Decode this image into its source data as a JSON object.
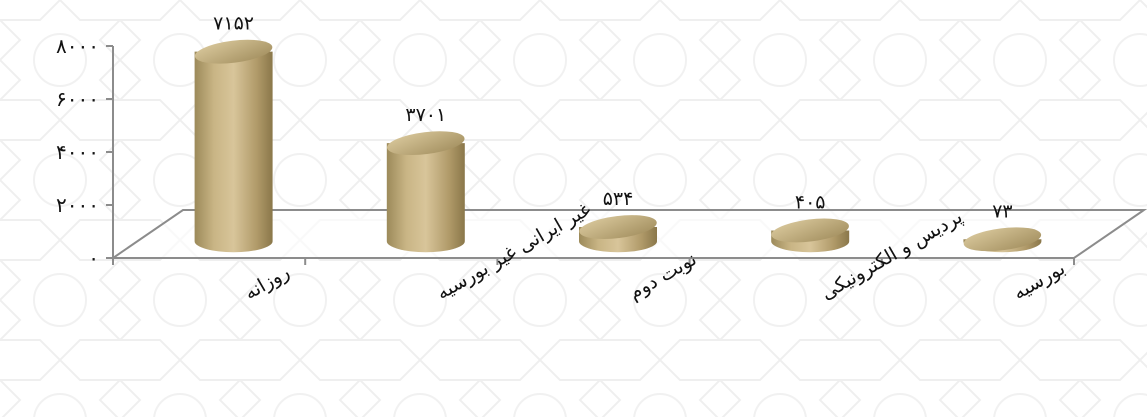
{
  "chart_data": {
    "type": "bar",
    "categories": [
      "روزانه",
      "غیر ایرانی غیر بورسیه",
      "نوبت دوم",
      "پردیس و الکترونیکی",
      "بورسیه"
    ],
    "values": [
      7152,
      3701,
      534,
      405,
      73
    ],
    "data_labels": [
      "۷۱۵۲",
      "۳۷۰۱",
      "۵۳۴",
      "۴۰۵",
      "۷۳"
    ],
    "ylim": [
      0,
      8000
    ],
    "y_ticks": [
      0,
      2000,
      4000,
      6000,
      8000
    ],
    "y_tick_labels": [
      "۰",
      "۲۰۰۰",
      "۴۰۰۰",
      "۶۰۰۰",
      "۸۰۰۰"
    ],
    "bar_shape": "cylinder",
    "three_d": true,
    "grid": false,
    "legend": "none",
    "title": "",
    "xlabel": "",
    "ylabel": ""
  },
  "colors": {
    "bar_light": "#d8c59a",
    "bar_mid": "#b7a170",
    "bar_dark": "#8a774a",
    "top_light": "#dccb9f",
    "top_dark": "#a08c5c",
    "axis": "#8c8c8c",
    "pattern": "#eeeeee"
  }
}
